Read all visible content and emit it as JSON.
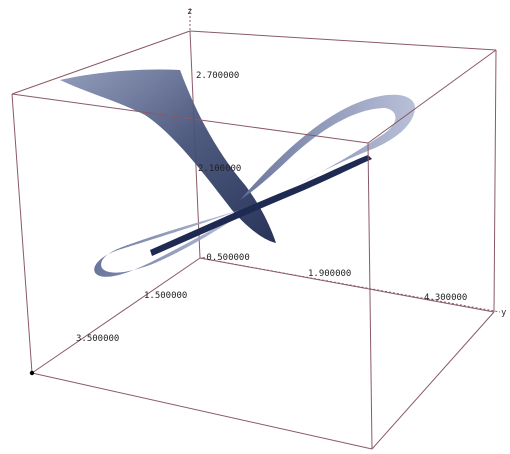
{
  "chart_data": {
    "type": "surface3d",
    "title": "",
    "axes": {
      "x": {
        "label": "",
        "ticks": [
          "3.500000"
        ]
      },
      "y": {
        "label": "y",
        "ticks": [
          "1.900000",
          "4.300000"
        ]
      },
      "z": {
        "label": "z",
        "ticks": [
          "-0.500000",
          "2.100000",
          "2.700000"
        ]
      },
      "center_tick": "1.500000"
    },
    "ribbons": [
      {
        "name": "",
        "color": "#3d4a72"
      }
    ],
    "colors": {
      "box": "#8a5a66",
      "surface": "#3d4a72",
      "surface_light": "#8e9ac0",
      "origin_dot": "#000000"
    }
  }
}
